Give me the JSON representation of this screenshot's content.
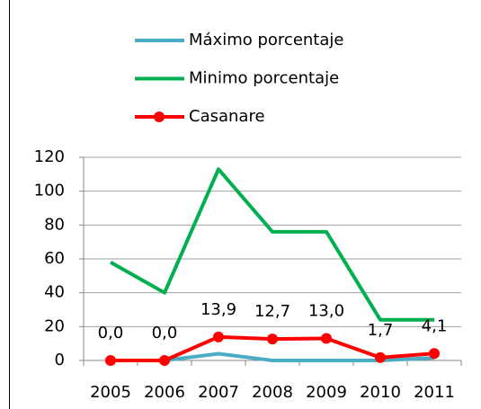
{
  "chart_data": {
    "type": "line",
    "categories": [
      "2005",
      "2006",
      "2007",
      "2008",
      "2009",
      "2010",
      "2011"
    ],
    "series": [
      {
        "name": "Máximo porcentaje",
        "color": "#4bacc6",
        "values": [
          0,
          0,
          4,
          0,
          0,
          0,
          1.5
        ]
      },
      {
        "name": "Minimo porcentaje",
        "color": "#00b050",
        "values": [
          58,
          40,
          113,
          76,
          76,
          24,
          24
        ]
      },
      {
        "name": "Casanare",
        "color": "#ff0000",
        "values": [
          0,
          0,
          13.9,
          12.7,
          13.0,
          1.7,
          4.1
        ],
        "value_labels": [
          "0,0",
          "0,0",
          "13,9",
          "12,7",
          "13,0",
          "1,7",
          "4,1"
        ],
        "markers": true
      }
    ],
    "ylim": [
      0,
      120
    ],
    "yticks": [
      0,
      20,
      40,
      60,
      80,
      100,
      120
    ],
    "grid": true,
    "legend": "top"
  }
}
